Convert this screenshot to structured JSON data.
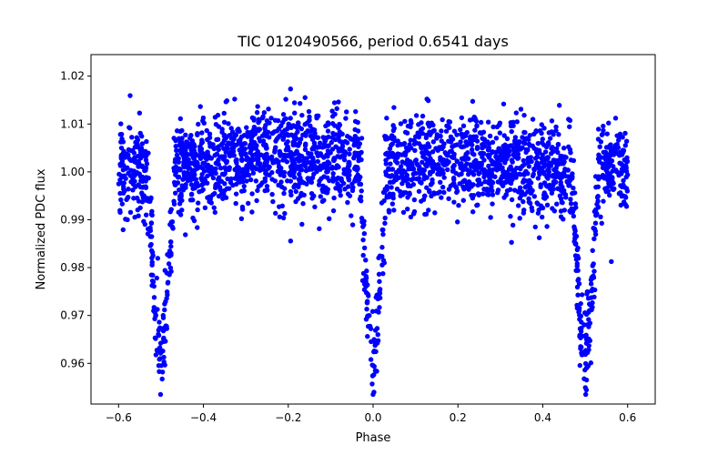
{
  "chart_data": {
    "type": "scatter",
    "title": "TIC 0120490566, period 0.6541 days",
    "xlabel": "Phase",
    "ylabel": "Normalized PDC flux",
    "xlim": [
      -0.665,
      0.665
    ],
    "ylim": [
      0.9515,
      1.0245
    ],
    "xticks": [
      -0.6,
      -0.4,
      -0.2,
      0.0,
      0.2,
      0.4,
      0.6
    ],
    "xtick_labels": [
      "−0.6",
      "−0.4",
      "−0.2",
      "0.0",
      "0.2",
      "0.4",
      "0.6"
    ],
    "yticks": [
      0.96,
      0.97,
      0.98,
      0.99,
      1.0,
      1.01,
      1.02
    ],
    "ytick_labels": [
      "0.96",
      "0.97",
      "0.98",
      "0.99",
      "1.00",
      "1.01",
      "1.02"
    ],
    "grid": false,
    "marker_color": "#0000ff",
    "series": [
      {
        "name": "PDC flux",
        "description": "Phase-folded eclipsing binary light curve: baseline ~1.002 with scatter, primary eclipse at phase 0 reaching ~0.955, secondary eclipses at phase ±0.5 reaching ~0.956",
        "points_sample": [
          [
            -0.6,
            1.004
          ],
          [
            -0.58,
            1.012
          ],
          [
            -0.56,
            1.001
          ],
          [
            -0.54,
            1.009
          ],
          [
            -0.52,
            0.995
          ],
          [
            -0.5,
            0.962
          ],
          [
            -0.49,
            0.975
          ],
          [
            -0.48,
            0.99
          ],
          [
            -0.45,
            1.008
          ],
          [
            -0.4,
            1.006
          ],
          [
            -0.3,
            1.003
          ],
          [
            -0.2,
            1.002
          ],
          [
            -0.1,
            0.999
          ],
          [
            -0.05,
            0.997
          ],
          [
            -0.01,
            0.985
          ],
          [
            0.0,
            0.958
          ],
          [
            0.01,
            0.983
          ],
          [
            0.05,
            0.998
          ],
          [
            0.1,
            1.0
          ],
          [
            0.2,
            1.001
          ],
          [
            0.3,
            1.002
          ],
          [
            0.4,
            1.005
          ],
          [
            0.45,
            1.007
          ],
          [
            0.48,
            0.992
          ],
          [
            0.5,
            0.962
          ],
          [
            0.52,
            0.985
          ],
          [
            0.55,
            1.008
          ],
          [
            0.58,
            1.006
          ],
          [
            0.6,
            1.003
          ]
        ]
      }
    ]
  }
}
